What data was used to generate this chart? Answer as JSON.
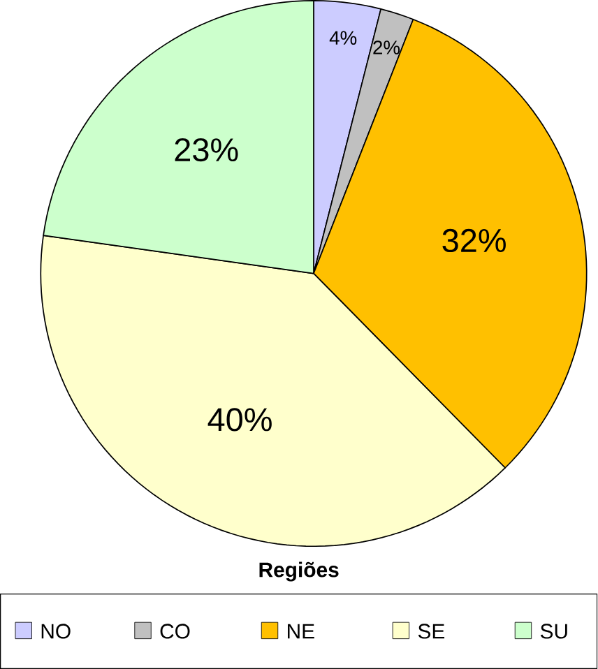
{
  "chart_data": {
    "type": "pie",
    "categories": [
      "NO",
      "CO",
      "NE",
      "SE",
      "SU"
    ],
    "values": [
      4,
      2,
      32,
      40,
      23
    ],
    "colors": [
      "#ccccff",
      "#c0c0c0",
      "#ffc000",
      "#ffffcc",
      "#ccffcc"
    ],
    "data_labels": true,
    "value_labels": [
      "4%",
      "2%",
      "32%",
      "40%",
      "23%"
    ],
    "legend": "bottom",
    "legend_title": "Regiões"
  }
}
